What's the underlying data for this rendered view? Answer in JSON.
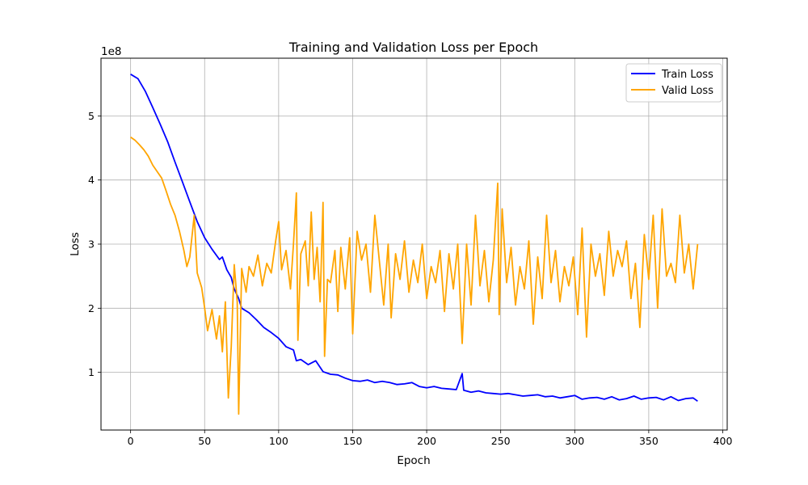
{
  "chart_data": {
    "type": "line",
    "title": "Training and Validation Loss per Epoch",
    "xlabel": "Epoch",
    "ylabel": "Loss",
    "y_scale_label": "1e8",
    "xlim": [
      -20,
      403
    ],
    "ylim": [
      10000000,
      590000000
    ],
    "x_ticks": [
      0,
      50,
      100,
      150,
      200,
      250,
      300,
      350,
      400
    ],
    "y_ticks": [
      100000000,
      200000000,
      300000000,
      400000000,
      500000000
    ],
    "x_tick_labels": [
      "0",
      "50",
      "100",
      "150",
      "200",
      "250",
      "300",
      "350",
      "400"
    ],
    "y_tick_labels": [
      "1",
      "2",
      "3",
      "4",
      "5"
    ],
    "grid": true,
    "legend_position": "top-right",
    "series": [
      {
        "name": "Train Loss",
        "color": "#0000ff",
        "x": [
          0,
          5,
          10,
          15,
          20,
          25,
          30,
          35,
          40,
          45,
          50,
          55,
          60,
          62,
          65,
          68,
          70,
          73,
          75,
          80,
          85,
          90,
          95,
          100,
          105,
          110,
          112,
          115,
          120,
          125,
          130,
          135,
          140,
          145,
          150,
          155,
          160,
          165,
          170,
          175,
          180,
          185,
          190,
          195,
          200,
          205,
          210,
          215,
          220,
          224,
          225,
          230,
          235,
          240,
          245,
          250,
          255,
          260,
          265,
          270,
          275,
          280,
          285,
          290,
          295,
          300,
          305,
          310,
          315,
          320,
          325,
          330,
          335,
          340,
          345,
          350,
          355,
          360,
          365,
          370,
          375,
          380,
          383
        ],
        "y": [
          565000000,
          558000000,
          538000000,
          513000000,
          487000000,
          460000000,
          428000000,
          397000000,
          366000000,
          335000000,
          310000000,
          292000000,
          276000000,
          280000000,
          260000000,
          248000000,
          230000000,
          215000000,
          200000000,
          193000000,
          182000000,
          170000000,
          162000000,
          153000000,
          140000000,
          135000000,
          118000000,
          120000000,
          112000000,
          118000000,
          101000000,
          97000000,
          96000000,
          91000000,
          87000000,
          86000000,
          88000000,
          84000000,
          86000000,
          84000000,
          81000000,
          82000000,
          84000000,
          78000000,
          76000000,
          78000000,
          75000000,
          74000000,
          73000000,
          98000000,
          72000000,
          69000000,
          71000000,
          68000000,
          67000000,
          66000000,
          67000000,
          65000000,
          63000000,
          64000000,
          65000000,
          62000000,
          63000000,
          60000000,
          62000000,
          64000000,
          58000000,
          60000000,
          61000000,
          58000000,
          62000000,
          57000000,
          59000000,
          63000000,
          58000000,
          60000000,
          61000000,
          57000000,
          62000000,
          56000000,
          59000000,
          60000000,
          55000000
        ]
      },
      {
        "name": "Valid Loss",
        "color": "#ffa500",
        "x": [
          0,
          3,
          6,
          9,
          12,
          15,
          18,
          21,
          24,
          27,
          30,
          33,
          36,
          38,
          40,
          43,
          45,
          48,
          50,
          52,
          55,
          58,
          60,
          62,
          64,
          66,
          68,
          70,
          72,
          73,
          75,
          78,
          80,
          83,
          86,
          89,
          92,
          95,
          98,
          100,
          102,
          105,
          108,
          110,
          112,
          113,
          115,
          118,
          120,
          122,
          124,
          126,
          128,
          130,
          131,
          133,
          135,
          138,
          140,
          142,
          145,
          148,
          150,
          153,
          156,
          159,
          162,
          165,
          168,
          171,
          174,
          176,
          179,
          182,
          185,
          188,
          191,
          194,
          197,
          200,
          203,
          206,
          209,
          212,
          215,
          218,
          221,
          224,
          227,
          230,
          233,
          236,
          239,
          242,
          245,
          248,
          249,
          251,
          254,
          257,
          260,
          263,
          266,
          269,
          272,
          275,
          278,
          281,
          284,
          287,
          290,
          293,
          296,
          299,
          302,
          305,
          308,
          311,
          314,
          317,
          320,
          323,
          326,
          329,
          332,
          335,
          338,
          341,
          344,
          347,
          350,
          353,
          356,
          359,
          362,
          365,
          368,
          371,
          374,
          377,
          380,
          383
        ],
        "y": [
          467000000,
          462000000,
          455000000,
          447000000,
          437000000,
          423000000,
          413000000,
          403000000,
          383000000,
          362000000,
          345000000,
          320000000,
          290000000,
          265000000,
          280000000,
          345000000,
          255000000,
          232000000,
          200000000,
          165000000,
          198000000,
          152000000,
          188000000,
          132000000,
          210000000,
          60000000,
          140000000,
          268000000,
          210000000,
          35000000,
          262000000,
          225000000,
          265000000,
          250000000,
          283000000,
          235000000,
          270000000,
          255000000,
          305000000,
          335000000,
          260000000,
          290000000,
          230000000,
          300000000,
          380000000,
          150000000,
          285000000,
          305000000,
          235000000,
          350000000,
          245000000,
          295000000,
          210000000,
          365000000,
          125000000,
          245000000,
          240000000,
          290000000,
          195000000,
          295000000,
          230000000,
          310000000,
          160000000,
          320000000,
          275000000,
          300000000,
          225000000,
          345000000,
          275000000,
          205000000,
          300000000,
          185000000,
          285000000,
          245000000,
          305000000,
          225000000,
          275000000,
          240000000,
          300000000,
          215000000,
          265000000,
          240000000,
          290000000,
          195000000,
          285000000,
          230000000,
          300000000,
          145000000,
          300000000,
          205000000,
          345000000,
          235000000,
          290000000,
          210000000,
          275000000,
          395000000,
          190000000,
          355000000,
          240000000,
          295000000,
          205000000,
          265000000,
          230000000,
          305000000,
          175000000,
          280000000,
          215000000,
          345000000,
          240000000,
          290000000,
          210000000,
          265000000,
          235000000,
          280000000,
          190000000,
          325000000,
          155000000,
          300000000,
          250000000,
          285000000,
          220000000,
          320000000,
          250000000,
          290000000,
          265000000,
          305000000,
          215000000,
          270000000,
          170000000,
          315000000,
          245000000,
          345000000,
          200000000,
          355000000,
          250000000,
          270000000,
          240000000,
          345000000,
          255000000,
          300000000,
          230000000,
          300000000
        ]
      }
    ]
  }
}
